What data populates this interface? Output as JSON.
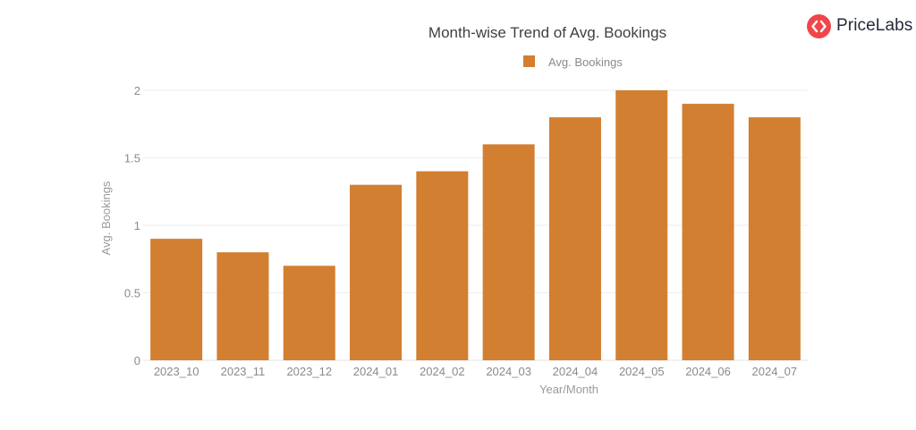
{
  "brand": {
    "name": "PriceLabs",
    "accent_color": "#f0464b",
    "icon": "pricelabs-logo-icon"
  },
  "chart_data": {
    "type": "bar",
    "title": "Month-wise Trend of Avg. Bookings",
    "xlabel": "Year/Month",
    "ylabel": "Avg. Bookings",
    "categories": [
      "2023_10",
      "2023_11",
      "2023_12",
      "2024_01",
      "2024_02",
      "2024_03",
      "2024_04",
      "2024_05",
      "2024_06",
      "2024_07"
    ],
    "series": [
      {
        "name": "Avg. Bookings",
        "values": [
          0.9,
          0.8,
          0.7,
          1.3,
          1.4,
          1.6,
          1.8,
          2.0,
          1.9,
          1.8
        ],
        "color": "#d27f31"
      }
    ],
    "ylim": [
      0,
      2
    ],
    "yticks": [
      {
        "value": 0,
        "label": "0"
      },
      {
        "value": 0.5,
        "label": "0.5"
      },
      {
        "value": 1,
        "label": "1"
      },
      {
        "value": 1.5,
        "label": "1.5"
      },
      {
        "value": 2,
        "label": "2"
      }
    ],
    "grid": true,
    "legend_position": "top-center"
  }
}
